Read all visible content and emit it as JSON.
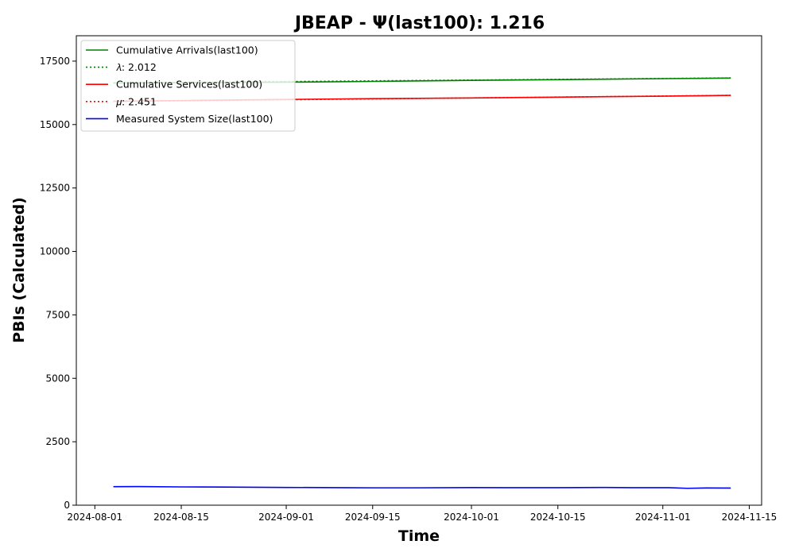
{
  "chart_data": {
    "type": "line",
    "title": "JBEAP -  Ψ(last100): 1.216",
    "xlabel": "Time",
    "ylabel": "PBIs (Calculated)",
    "x_axis": {
      "kind": "date",
      "range": [
        "2024-07-29",
        "2024-11-17"
      ],
      "tick_labels": [
        "2024-08-01",
        "2024-08-15",
        "2024-09-01",
        "2024-09-15",
        "2024-10-01",
        "2024-10-15",
        "2024-11-01",
        "2024-11-15"
      ]
    },
    "y_axis": {
      "range": [
        0,
        18500
      ],
      "tick_labels": [
        "0",
        "2500",
        "5000",
        "7500",
        "10000",
        "12500",
        "15000",
        "17500"
      ]
    },
    "grid": false,
    "legend_placement": "top-left",
    "legend": [
      {
        "label": "Cumulative Arrivals(last100)",
        "color": "#008000",
        "style": "solid"
      },
      {
        "label": "𝜆: 2.012",
        "color": "#008000",
        "style": "dotted"
      },
      {
        "label": "Cumulative Services(last100)",
        "color": "#ff0000",
        "style": "solid"
      },
      {
        "label": "𝜇: 2.451",
        "color": "#ff0000",
        "style": "dotted"
      },
      {
        "label": "Measured System Size(last100)",
        "color": "#0000ff",
        "style": "solid"
      }
    ],
    "series": [
      {
        "name": "Cumulative Arrivals(last100)",
        "color": "#008000",
        "style": "solid",
        "points": [
          [
            "2024-08-04",
            16640
          ],
          [
            "2024-08-15",
            16650
          ],
          [
            "2024-09-01",
            16670
          ],
          [
            "2024-09-15",
            16700
          ],
          [
            "2024-10-01",
            16740
          ],
          [
            "2024-10-15",
            16770
          ],
          [
            "2024-11-01",
            16810
          ],
          [
            "2024-11-12",
            16830
          ]
        ]
      },
      {
        "name": "𝜆: 2.012",
        "color": "#008000",
        "style": "dotted",
        "points": [
          [
            "2024-08-04",
            16640
          ],
          [
            "2024-11-12",
            16838
          ]
        ]
      },
      {
        "name": "Cumulative Services(last100)",
        "color": "#ff0000",
        "style": "solid",
        "points": [
          [
            "2024-08-04",
            15920
          ],
          [
            "2024-08-15",
            15945
          ],
          [
            "2024-09-01",
            15990
          ],
          [
            "2024-09-15",
            16020
          ],
          [
            "2024-10-01",
            16050
          ],
          [
            "2024-10-15",
            16080
          ],
          [
            "2024-11-01",
            16120
          ],
          [
            "2024-11-12",
            16150
          ]
        ]
      },
      {
        "name": "𝜇: 2.451",
        "color": "#ff0000",
        "style": "dotted",
        "points": [
          [
            "2024-08-04",
            15910
          ],
          [
            "2024-11-12",
            16151
          ]
        ]
      },
      {
        "name": "Measured System Size(last100)",
        "color": "#0000ff",
        "style": "solid",
        "points": [
          [
            "2024-08-04",
            730
          ],
          [
            "2024-08-08",
            735
          ],
          [
            "2024-08-15",
            720
          ],
          [
            "2024-08-22",
            715
          ],
          [
            "2024-09-01",
            700
          ],
          [
            "2024-09-10",
            690
          ],
          [
            "2024-09-15",
            685
          ],
          [
            "2024-09-22",
            685
          ],
          [
            "2024-10-01",
            695
          ],
          [
            "2024-10-08",
            690
          ],
          [
            "2024-10-15",
            690
          ],
          [
            "2024-10-22",
            700
          ],
          [
            "2024-10-27",
            690
          ],
          [
            "2024-11-02",
            690
          ],
          [
            "2024-11-05",
            665
          ],
          [
            "2024-11-08",
            680
          ],
          [
            "2024-11-12",
            675
          ]
        ]
      }
    ]
  }
}
